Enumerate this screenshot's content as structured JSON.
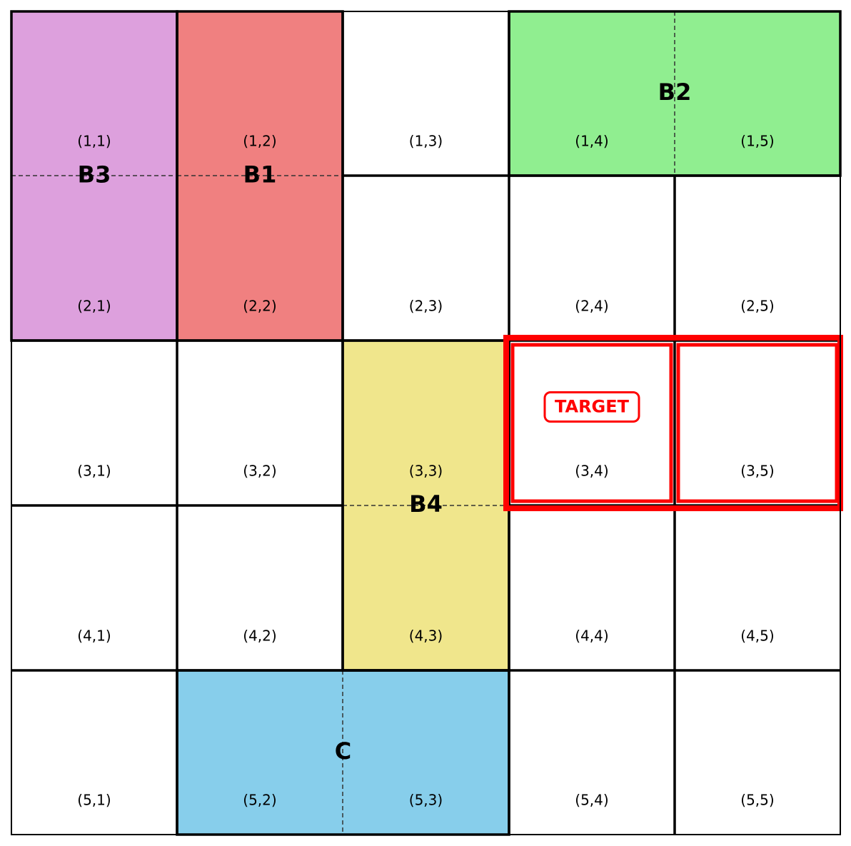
{
  "grid": {
    "rows": 5,
    "cols": 5
  },
  "blocks": [
    {
      "id": "B3",
      "label": "B3",
      "color": "#dda0dd",
      "r1": 1,
      "c1": 1,
      "r2": 2,
      "c2": 1
    },
    {
      "id": "B1",
      "label": "B1",
      "color": "#f08080",
      "r1": 1,
      "c1": 2,
      "r2": 2,
      "c2": 2
    },
    {
      "id": "B2",
      "label": "B2",
      "color": "#90ee90",
      "r1": 1,
      "c1": 4,
      "r2": 1,
      "c2": 5
    },
    {
      "id": "B4",
      "label": "B4",
      "color": "#f0e68c",
      "r1": 3,
      "c1": 3,
      "r2": 4,
      "c2": 3
    },
    {
      "id": "C",
      "label": "C",
      "color": "#87ceeb",
      "r1": 5,
      "c1": 2,
      "r2": 5,
      "c2": 3
    }
  ],
  "target": {
    "label": "TARGET",
    "color": "#ff0000",
    "r1": 3,
    "c1": 4,
    "r2": 3,
    "c2": 5
  },
  "cells": [
    "(1,1)",
    "(1,2)",
    "(1,3)",
    "(1,4)",
    "(1,5)",
    "(2,1)",
    "(2,2)",
    "(2,3)",
    "(2,4)",
    "(2,5)",
    "(3,1)",
    "(3,2)",
    "(3,3)",
    "(3,4)",
    "(3,5)",
    "(4,1)",
    "(4,2)",
    "(4,3)",
    "(4,4)",
    "(4,5)",
    "(5,1)",
    "(5,2)",
    "(5,3)",
    "(5,4)",
    "(5,5)"
  ]
}
